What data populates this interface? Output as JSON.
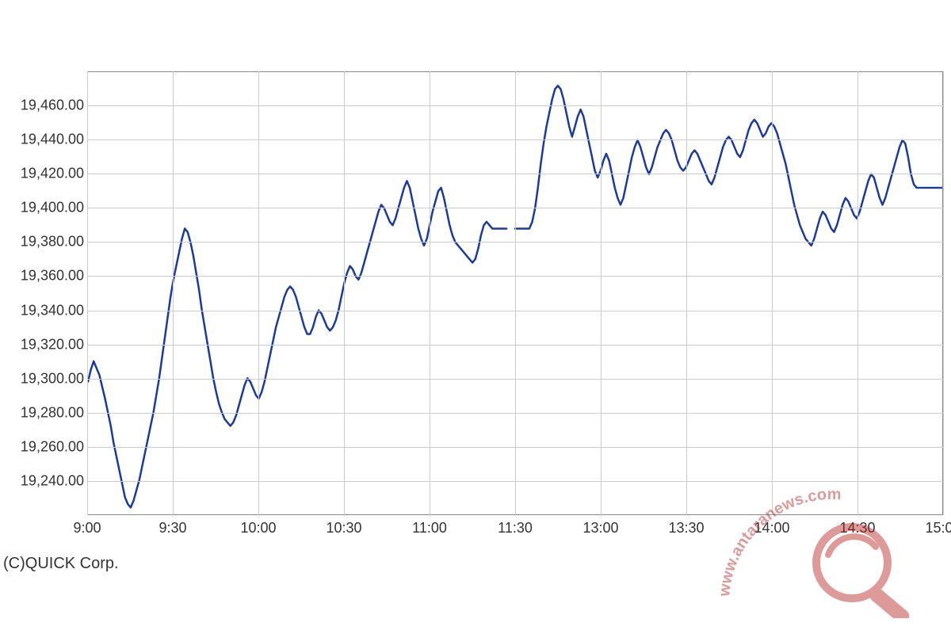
{
  "chart": {
    "type": "line",
    "background_color": "#ffffff",
    "border_color": "#888888",
    "grid_color": "#cccccc",
    "line_color": "#1a3a9e",
    "line_width": 2.5,
    "label_color": "#333333",
    "label_fontsize": 18,
    "y": {
      "min": 19220,
      "max": 19480,
      "ticks": [
        19240,
        19260,
        19280,
        19300,
        19320,
        19340,
        19360,
        19380,
        19400,
        19420,
        19440,
        19460
      ],
      "tick_labels": [
        "19,240.00",
        "19,260.00",
        "19,280.00",
        "19,300.00",
        "19,320.00",
        "19,340.00",
        "19,360.00",
        "19,380.00",
        "19,400.00",
        "19,420.00",
        "19,440.00",
        "19,460.00"
      ]
    },
    "x": {
      "min": 0,
      "max": 300,
      "ticks": [
        0,
        30,
        60,
        90,
        120,
        150,
        180,
        210,
        240,
        270,
        300
      ],
      "tick_labels": [
        "9:00",
        "9:30",
        "10:00",
        "10:30",
        "11:00",
        "11:30",
        "13:00",
        "13:30",
        "14:00",
        "14:30",
        "15:00"
      ]
    },
    "segments": [
      {
        "points": [
          [
            0,
            19298
          ],
          [
            1,
            19305
          ],
          [
            2,
            19310
          ],
          [
            3,
            19306
          ],
          [
            4,
            19302
          ],
          [
            5,
            19295
          ],
          [
            6,
            19288
          ],
          [
            7,
            19280
          ],
          [
            8,
            19272
          ],
          [
            9,
            19262
          ],
          [
            10,
            19254
          ],
          [
            11,
            19246
          ],
          [
            12,
            19238
          ],
          [
            13,
            19230
          ],
          [
            14,
            19226
          ],
          [
            15,
            19224
          ],
          [
            16,
            19228
          ],
          [
            17,
            19234
          ],
          [
            18,
            19240
          ],
          [
            19,
            19248
          ],
          [
            20,
            19256
          ],
          [
            21,
            19264
          ],
          [
            22,
            19272
          ],
          [
            23,
            19280
          ],
          [
            24,
            19290
          ],
          [
            25,
            19300
          ],
          [
            26,
            19312
          ],
          [
            27,
            19324
          ],
          [
            28,
            19336
          ],
          [
            29,
            19348
          ],
          [
            30,
            19358
          ],
          [
            31,
            19366
          ],
          [
            32,
            19374
          ],
          [
            33,
            19382
          ],
          [
            34,
            19388
          ],
          [
            35,
            19386
          ],
          [
            36,
            19380
          ],
          [
            37,
            19372
          ],
          [
            38,
            19362
          ],
          [
            39,
            19352
          ],
          [
            40,
            19340
          ],
          [
            41,
            19330
          ],
          [
            42,
            19320
          ],
          [
            43,
            19310
          ],
          [
            44,
            19300
          ],
          [
            45,
            19292
          ],
          [
            46,
            19285
          ],
          [
            47,
            19280
          ],
          [
            48,
            19276
          ],
          [
            49,
            19274
          ],
          [
            50,
            19272
          ],
          [
            51,
            19274
          ],
          [
            52,
            19278
          ],
          [
            53,
            19284
          ],
          [
            54,
            19290
          ],
          [
            55,
            19296
          ],
          [
            56,
            19300
          ],
          [
            57,
            19298
          ],
          [
            58,
            19294
          ],
          [
            59,
            19290
          ],
          [
            60,
            19288
          ],
          [
            61,
            19292
          ],
          [
            62,
            19298
          ],
          [
            63,
            19306
          ],
          [
            64,
            19314
          ],
          [
            65,
            19322
          ],
          [
            66,
            19330
          ],
          [
            67,
            19336
          ],
          [
            68,
            19342
          ],
          [
            69,
            19348
          ],
          [
            70,
            19352
          ],
          [
            71,
            19354
          ],
          [
            72,
            19352
          ],
          [
            73,
            19348
          ],
          [
            74,
            19342
          ],
          [
            75,
            19336
          ],
          [
            76,
            19330
          ],
          [
            77,
            19326
          ],
          [
            78,
            19326
          ],
          [
            79,
            19330
          ],
          [
            80,
            19336
          ],
          [
            81,
            19340
          ],
          [
            82,
            19338
          ],
          [
            83,
            19334
          ],
          [
            84,
            19330
          ],
          [
            85,
            19328
          ],
          [
            86,
            19330
          ],
          [
            87,
            19334
          ],
          [
            88,
            19340
          ],
          [
            89,
            19348
          ],
          [
            90,
            19356
          ],
          [
            91,
            19362
          ],
          [
            92,
            19366
          ],
          [
            93,
            19364
          ],
          [
            94,
            19360
          ],
          [
            95,
            19358
          ],
          [
            96,
            19362
          ],
          [
            97,
            19368
          ],
          [
            98,
            19374
          ],
          [
            99,
            19380
          ],
          [
            100,
            19386
          ],
          [
            101,
            19392
          ],
          [
            102,
            19398
          ],
          [
            103,
            19402
          ],
          [
            104,
            19400
          ],
          [
            105,
            19396
          ],
          [
            106,
            19392
          ],
          [
            107,
            19390
          ],
          [
            108,
            19394
          ],
          [
            109,
            19400
          ],
          [
            110,
            19406
          ],
          [
            111,
            19412
          ],
          [
            112,
            19416
          ],
          [
            113,
            19412
          ],
          [
            114,
            19404
          ],
          [
            115,
            19396
          ],
          [
            116,
            19388
          ],
          [
            117,
            19382
          ],
          [
            118,
            19378
          ],
          [
            119,
            19382
          ],
          [
            120,
            19390
          ],
          [
            121,
            19398
          ],
          [
            122,
            19404
          ],
          [
            123,
            19410
          ],
          [
            124,
            19412
          ],
          [
            125,
            19406
          ],
          [
            126,
            19398
          ],
          [
            127,
            19390
          ],
          [
            128,
            19384
          ],
          [
            129,
            19380
          ],
          [
            130,
            19378
          ],
          [
            131,
            19376
          ],
          [
            132,
            19374
          ],
          [
            133,
            19372
          ],
          [
            134,
            19370
          ],
          [
            135,
            19368
          ],
          [
            136,
            19370
          ],
          [
            137,
            19376
          ],
          [
            138,
            19384
          ],
          [
            139,
            19390
          ],
          [
            140,
            19392
          ],
          [
            141,
            19390
          ],
          [
            142,
            19388
          ],
          [
            143,
            19388
          ],
          [
            144,
            19388
          ],
          [
            145,
            19388
          ],
          [
            146,
            19388
          ],
          [
            147,
            19388
          ]
        ]
      },
      {
        "points": [
          [
            150,
            19388
          ],
          [
            151,
            19388
          ],
          [
            152,
            19388
          ],
          [
            153,
            19388
          ],
          [
            154,
            19388
          ],
          [
            155,
            19388
          ],
          [
            156,
            19392
          ],
          [
            157,
            19400
          ],
          [
            158,
            19412
          ],
          [
            159,
            19426
          ],
          [
            160,
            19438
          ],
          [
            161,
            19448
          ],
          [
            162,
            19456
          ],
          [
            163,
            19464
          ],
          [
            164,
            19470
          ],
          [
            165,
            19472
          ],
          [
            166,
            19470
          ],
          [
            167,
            19464
          ],
          [
            168,
            19456
          ],
          [
            169,
            19448
          ],
          [
            170,
            19442
          ],
          [
            171,
            19448
          ],
          [
            172,
            19454
          ],
          [
            173,
            19458
          ],
          [
            174,
            19454
          ],
          [
            175,
            19446
          ],
          [
            176,
            19438
          ],
          [
            177,
            19430
          ],
          [
            178,
            19422
          ],
          [
            179,
            19418
          ],
          [
            180,
            19422
          ],
          [
            181,
            19428
          ],
          [
            182,
            19432
          ],
          [
            183,
            19428
          ],
          [
            184,
            19420
          ],
          [
            185,
            19412
          ],
          [
            186,
            19406
          ],
          [
            187,
            19402
          ],
          [
            188,
            19406
          ],
          [
            189,
            19414
          ],
          [
            190,
            19422
          ],
          [
            191,
            19430
          ],
          [
            192,
            19436
          ],
          [
            193,
            19440
          ],
          [
            194,
            19436
          ],
          [
            195,
            19430
          ],
          [
            196,
            19424
          ],
          [
            197,
            19420
          ],
          [
            198,
            19424
          ],
          [
            199,
            19430
          ],
          [
            200,
            19436
          ],
          [
            201,
            19440
          ],
          [
            202,
            19444
          ],
          [
            203,
            19446
          ],
          [
            204,
            19444
          ],
          [
            205,
            19440
          ],
          [
            206,
            19434
          ],
          [
            207,
            19428
          ],
          [
            208,
            19424
          ],
          [
            209,
            19422
          ],
          [
            210,
            19424
          ],
          [
            211,
            19428
          ],
          [
            212,
            19432
          ],
          [
            213,
            19434
          ],
          [
            214,
            19432
          ],
          [
            215,
            19428
          ],
          [
            216,
            19424
          ],
          [
            217,
            19420
          ],
          [
            218,
            19416
          ],
          [
            219,
            19414
          ],
          [
            220,
            19418
          ],
          [
            221,
            19424
          ],
          [
            222,
            19430
          ],
          [
            223,
            19436
          ],
          [
            224,
            19440
          ],
          [
            225,
            19442
          ],
          [
            226,
            19440
          ],
          [
            227,
            19436
          ],
          [
            228,
            19432
          ],
          [
            229,
            19430
          ],
          [
            230,
            19434
          ],
          [
            231,
            19440
          ],
          [
            232,
            19446
          ],
          [
            233,
            19450
          ],
          [
            234,
            19452
          ],
          [
            235,
            19450
          ],
          [
            236,
            19446
          ],
          [
            237,
            19442
          ],
          [
            238,
            19444
          ],
          [
            239,
            19448
          ],
          [
            240,
            19450
          ],
          [
            241,
            19448
          ],
          [
            242,
            19444
          ],
          [
            243,
            19438
          ],
          [
            244,
            19432
          ],
          [
            245,
            19426
          ],
          [
            246,
            19418
          ],
          [
            247,
            19410
          ],
          [
            248,
            19402
          ],
          [
            249,
            19396
          ],
          [
            250,
            19390
          ],
          [
            251,
            19386
          ],
          [
            252,
            19382
          ],
          [
            253,
            19380
          ],
          [
            254,
            19378
          ],
          [
            255,
            19382
          ],
          [
            256,
            19388
          ],
          [
            257,
            19394
          ],
          [
            258,
            19398
          ],
          [
            259,
            19396
          ],
          [
            260,
            19392
          ],
          [
            261,
            19388
          ],
          [
            262,
            19386
          ],
          [
            263,
            19390
          ],
          [
            264,
            19396
          ],
          [
            265,
            19402
          ],
          [
            266,
            19406
          ],
          [
            267,
            19404
          ],
          [
            268,
            19400
          ],
          [
            269,
            19396
          ],
          [
            270,
            19394
          ],
          [
            271,
            19398
          ],
          [
            272,
            19404
          ],
          [
            273,
            19410
          ],
          [
            274,
            19416
          ],
          [
            275,
            19420
          ],
          [
            276,
            19418
          ],
          [
            277,
            19412
          ],
          [
            278,
            19406
          ],
          [
            279,
            19402
          ],
          [
            280,
            19406
          ],
          [
            281,
            19412
          ],
          [
            282,
            19418
          ],
          [
            283,
            19424
          ],
          [
            284,
            19430
          ],
          [
            285,
            19436
          ],
          [
            286,
            19440
          ],
          [
            287,
            19438
          ],
          [
            288,
            19430
          ],
          [
            289,
            19420
          ],
          [
            290,
            19414
          ],
          [
            291,
            19412
          ],
          [
            292,
            19412
          ],
          [
            293,
            19412
          ],
          [
            294,
            19412
          ],
          [
            295,
            19412
          ],
          [
            296,
            19412
          ],
          [
            297,
            19412
          ],
          [
            298,
            19412
          ],
          [
            299,
            19412
          ],
          [
            300,
            19412
          ]
        ]
      }
    ]
  },
  "copyright": "(C)QUICK Corp.",
  "watermark": {
    "text": "www.antaranews.com",
    "color_text": "#b82020",
    "color_ring": "#b82020"
  }
}
